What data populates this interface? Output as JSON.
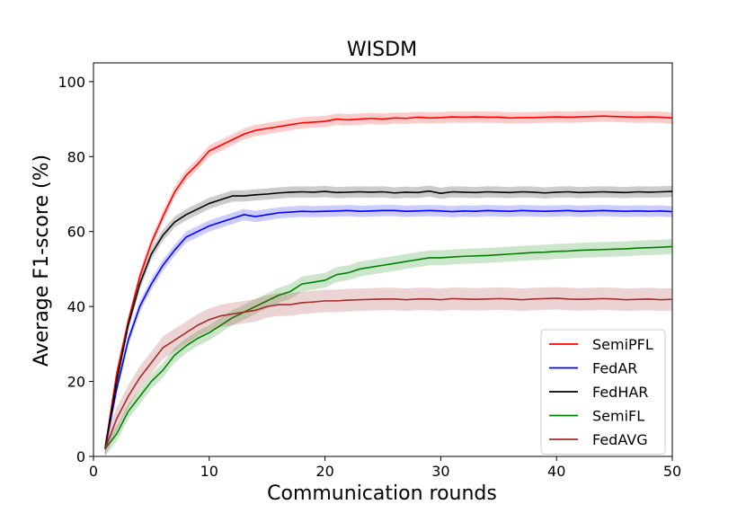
{
  "chart_data": {
    "type": "line",
    "title": "WISDM",
    "xlabel": "Communication rounds",
    "ylabel": "Average F1-score (%)",
    "xlim": [
      0,
      50
    ],
    "ylim": [
      0,
      105
    ],
    "xticks": [
      0,
      10,
      20,
      30,
      40,
      50
    ],
    "yticks": [
      0,
      20,
      40,
      60,
      80,
      100
    ],
    "grid": false,
    "legend_position": "lower-right",
    "x": [
      1,
      2,
      3,
      4,
      5,
      6,
      7,
      8,
      9,
      10,
      11,
      12,
      13,
      14,
      15,
      16,
      17,
      18,
      19,
      20,
      21,
      22,
      23,
      24,
      25,
      26,
      27,
      28,
      29,
      30,
      31,
      32,
      33,
      34,
      35,
      36,
      37,
      38,
      39,
      40,
      41,
      42,
      43,
      44,
      45,
      46,
      47,
      48,
      49,
      50
    ],
    "series": [
      {
        "name": "SemiPFL",
        "color": "#ff0000",
        "band": 1.5,
        "values": [
          2,
          22,
          36,
          48,
          57,
          64,
          70.5,
          75,
          78,
          81.5,
          83,
          84.5,
          86,
          87,
          87.5,
          88,
          88.5,
          89,
          89.2,
          89.4,
          90,
          89.8,
          90,
          90.2,
          90,
          90.3,
          90.2,
          90.5,
          90.3,
          90.4,
          90.6,
          90.5,
          90.6,
          90.5,
          90.5,
          90.3,
          90.4,
          90.4,
          90.5,
          90.6,
          90.5,
          90.6,
          90.7,
          90.8,
          90.7,
          90.6,
          90.5,
          90.6,
          90.5,
          90.3
        ]
      },
      {
        "name": "FedAR",
        "color": "#0000ff",
        "band": 1.5,
        "values": [
          2,
          18,
          31,
          40,
          46,
          51,
          55,
          58.5,
          60,
          61.5,
          62.5,
          63.5,
          64.5,
          64,
          64.5,
          65,
          65.2,
          65.4,
          65.3,
          65.4,
          65.5,
          65.6,
          65.4,
          65.5,
          65.6,
          65.6,
          65.4,
          65.5,
          65.6,
          65.5,
          65.3,
          65.5,
          65.4,
          65.6,
          65.5,
          65.4,
          65.6,
          65.5,
          65.4,
          65.5,
          65.6,
          65.4,
          65.5,
          65.6,
          65.5,
          65.4,
          65.5,
          65.4,
          65.5,
          65.3
        ]
      },
      {
        "name": "FedHAR",
        "color": "#000000",
        "band": 1.5,
        "values": [
          2,
          20,
          35,
          46,
          54,
          59,
          62.5,
          64.5,
          66,
          67.5,
          68.5,
          69.5,
          69.5,
          69.8,
          70,
          70.3,
          70.5,
          70.6,
          70.5,
          70.7,
          70.4,
          70.5,
          70.6,
          70.5,
          70.6,
          70.3,
          70.5,
          70.4,
          70.8,
          70.2,
          70.6,
          70.5,
          70.4,
          70.6,
          70.5,
          70.4,
          70.6,
          70.5,
          70.3,
          70.5,
          70.6,
          70.4,
          70.5,
          70.6,
          70.5,
          70.4,
          70.6,
          70.5,
          70.6,
          70.7
        ]
      },
      {
        "name": "SemiFL",
        "color": "#008000",
        "band": 2.0,
        "values": [
          2,
          6,
          12,
          16,
          20,
          23,
          27,
          29.5,
          31.5,
          33,
          35,
          37,
          38.5,
          40,
          41.5,
          43,
          44,
          46,
          46.5,
          47,
          48.5,
          49,
          50,
          50.5,
          51,
          51.5,
          52,
          52.5,
          53,
          53,
          53.2,
          53.4,
          53.5,
          53.6,
          53.8,
          54,
          54.2,
          54.4,
          54.5,
          54.7,
          54.8,
          55,
          55.1,
          55.2,
          55.3,
          55.4,
          55.6,
          55.7,
          55.8,
          56
        ]
      },
      {
        "name": "FedAVG",
        "color": "#a52a2a",
        "band": 3.0,
        "values": [
          2,
          10,
          16,
          21,
          25,
          29,
          31,
          33,
          35,
          36.5,
          37.5,
          38,
          38.5,
          39,
          40,
          40.5,
          40.5,
          41,
          41.2,
          41.5,
          41.5,
          41.7,
          41.8,
          41.9,
          42,
          42,
          41.8,
          42,
          42,
          41.8,
          42.1,
          42,
          41.9,
          42,
          42.1,
          42,
          41.8,
          42,
          42.1,
          42.2,
          42,
          41.9,
          42,
          42.1,
          42,
          41.8,
          41.9,
          42,
          41.8,
          41.9
        ]
      }
    ]
  }
}
